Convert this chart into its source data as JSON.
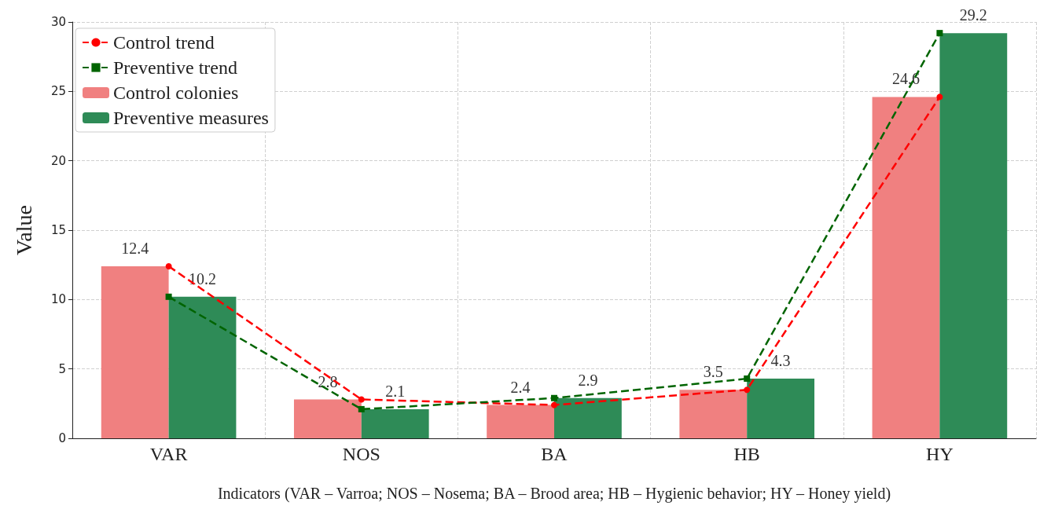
{
  "chart_data": {
    "type": "bar",
    "xlabel": "Indicators (VAR – Varroa; NOS – Nosema; BA – Brood area; HB – Hygienic behavior; HY – Honey yield)",
    "ylabel": "Value",
    "categories": [
      "VAR",
      "NOS",
      "BA",
      "HB",
      "HY"
    ],
    "series": [
      {
        "name": "Control trend",
        "type": "line",
        "color": "#ff0000",
        "marker": "circle",
        "line_style": "dashed",
        "values": [
          12.4,
          2.8,
          2.4,
          3.5,
          24.6
        ]
      },
      {
        "name": "Preventive trend",
        "type": "line",
        "color": "#006400",
        "marker": "square",
        "line_style": "dashed",
        "values": [
          10.2,
          2.1,
          2.9,
          4.3,
          29.2
        ]
      },
      {
        "name": "Control colonies",
        "color": "#f08080",
        "values": [
          12.4,
          2.8,
          2.4,
          3.5,
          24.6
        ],
        "value_labels": [
          "12.4",
          "2.8",
          "2.4",
          "3.5",
          "24.6"
        ]
      },
      {
        "name": "Preventive measures",
        "color": "#2e8b57",
        "values": [
          10.2,
          2.1,
          2.9,
          4.3,
          29.2
        ],
        "value_labels": [
          "10.2",
          "2.1",
          "2.9",
          "4.3",
          "29.2"
        ]
      }
    ],
    "ylim": [
      0,
      30
    ],
    "yticks": [
      0,
      5,
      10,
      15,
      20,
      25,
      30
    ],
    "grid": true,
    "legend": "top left"
  }
}
